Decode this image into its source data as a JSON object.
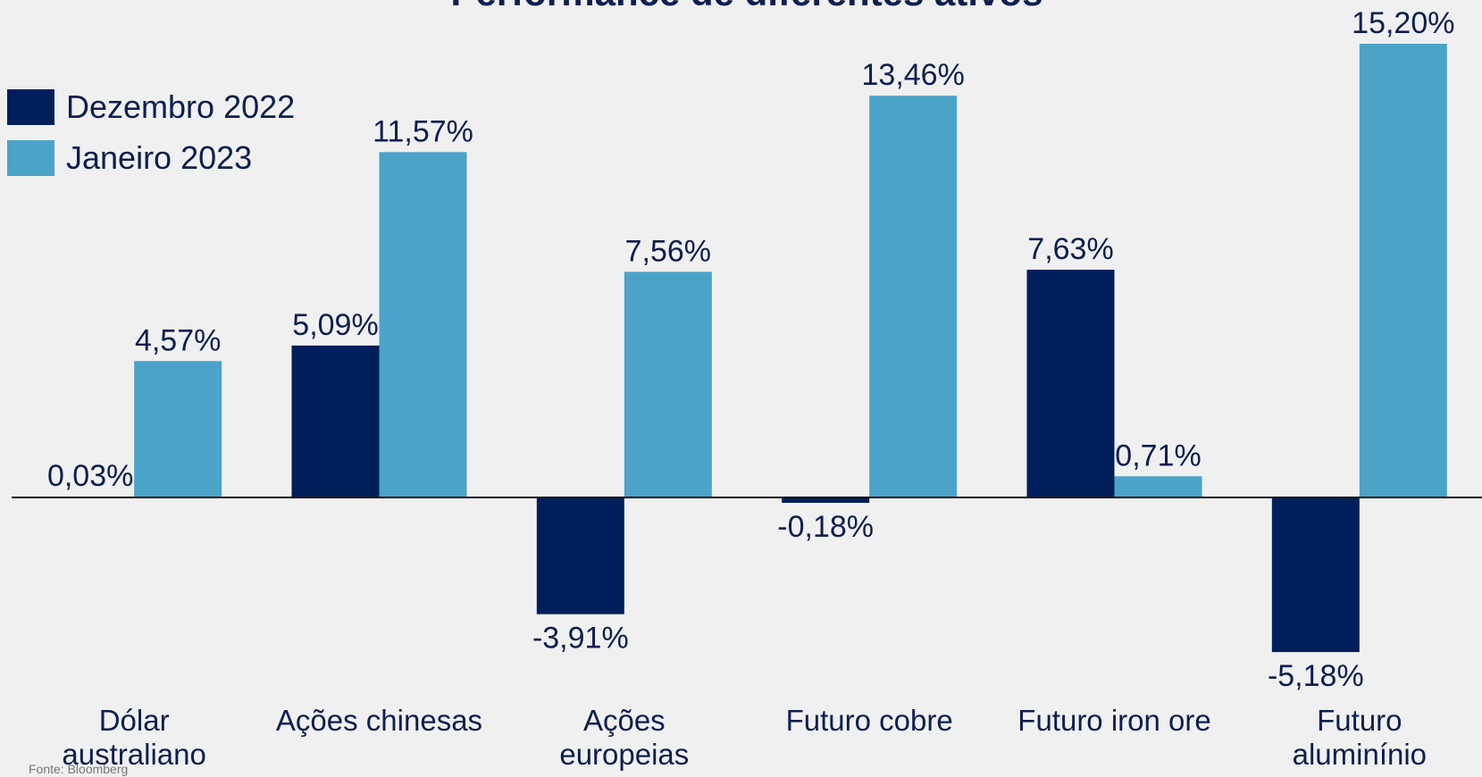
{
  "chart_data": {
    "type": "bar",
    "title": "Performance de diferentes ativos",
    "categories": [
      "Dólar australiano",
      "Ações chinesas",
      "Ações europeias",
      "Futuro cobre",
      "Futuro iron ore",
      "Futuro aluminínio"
    ],
    "series": [
      {
        "name": "Dezembro 2022",
        "color": "#001f5b",
        "values": [
          0.03,
          5.09,
          -3.91,
          -0.18,
          7.63,
          -5.18
        ],
        "value_labels": [
          "0,03%",
          "5,09%",
          "-3,91%",
          "-0,18%",
          "7,63%",
          "-5,18%"
        ]
      },
      {
        "name": "Janeiro 2023",
        "color": "#4ba3c8",
        "values": [
          4.57,
          11.57,
          7.56,
          13.46,
          0.71,
          15.2
        ],
        "value_labels": [
          "4,57%",
          "11,57%",
          "7,56%",
          "13,46%",
          "0,71%",
          "15,20%"
        ]
      }
    ],
    "source": "Fonte: Bloomberg"
  }
}
